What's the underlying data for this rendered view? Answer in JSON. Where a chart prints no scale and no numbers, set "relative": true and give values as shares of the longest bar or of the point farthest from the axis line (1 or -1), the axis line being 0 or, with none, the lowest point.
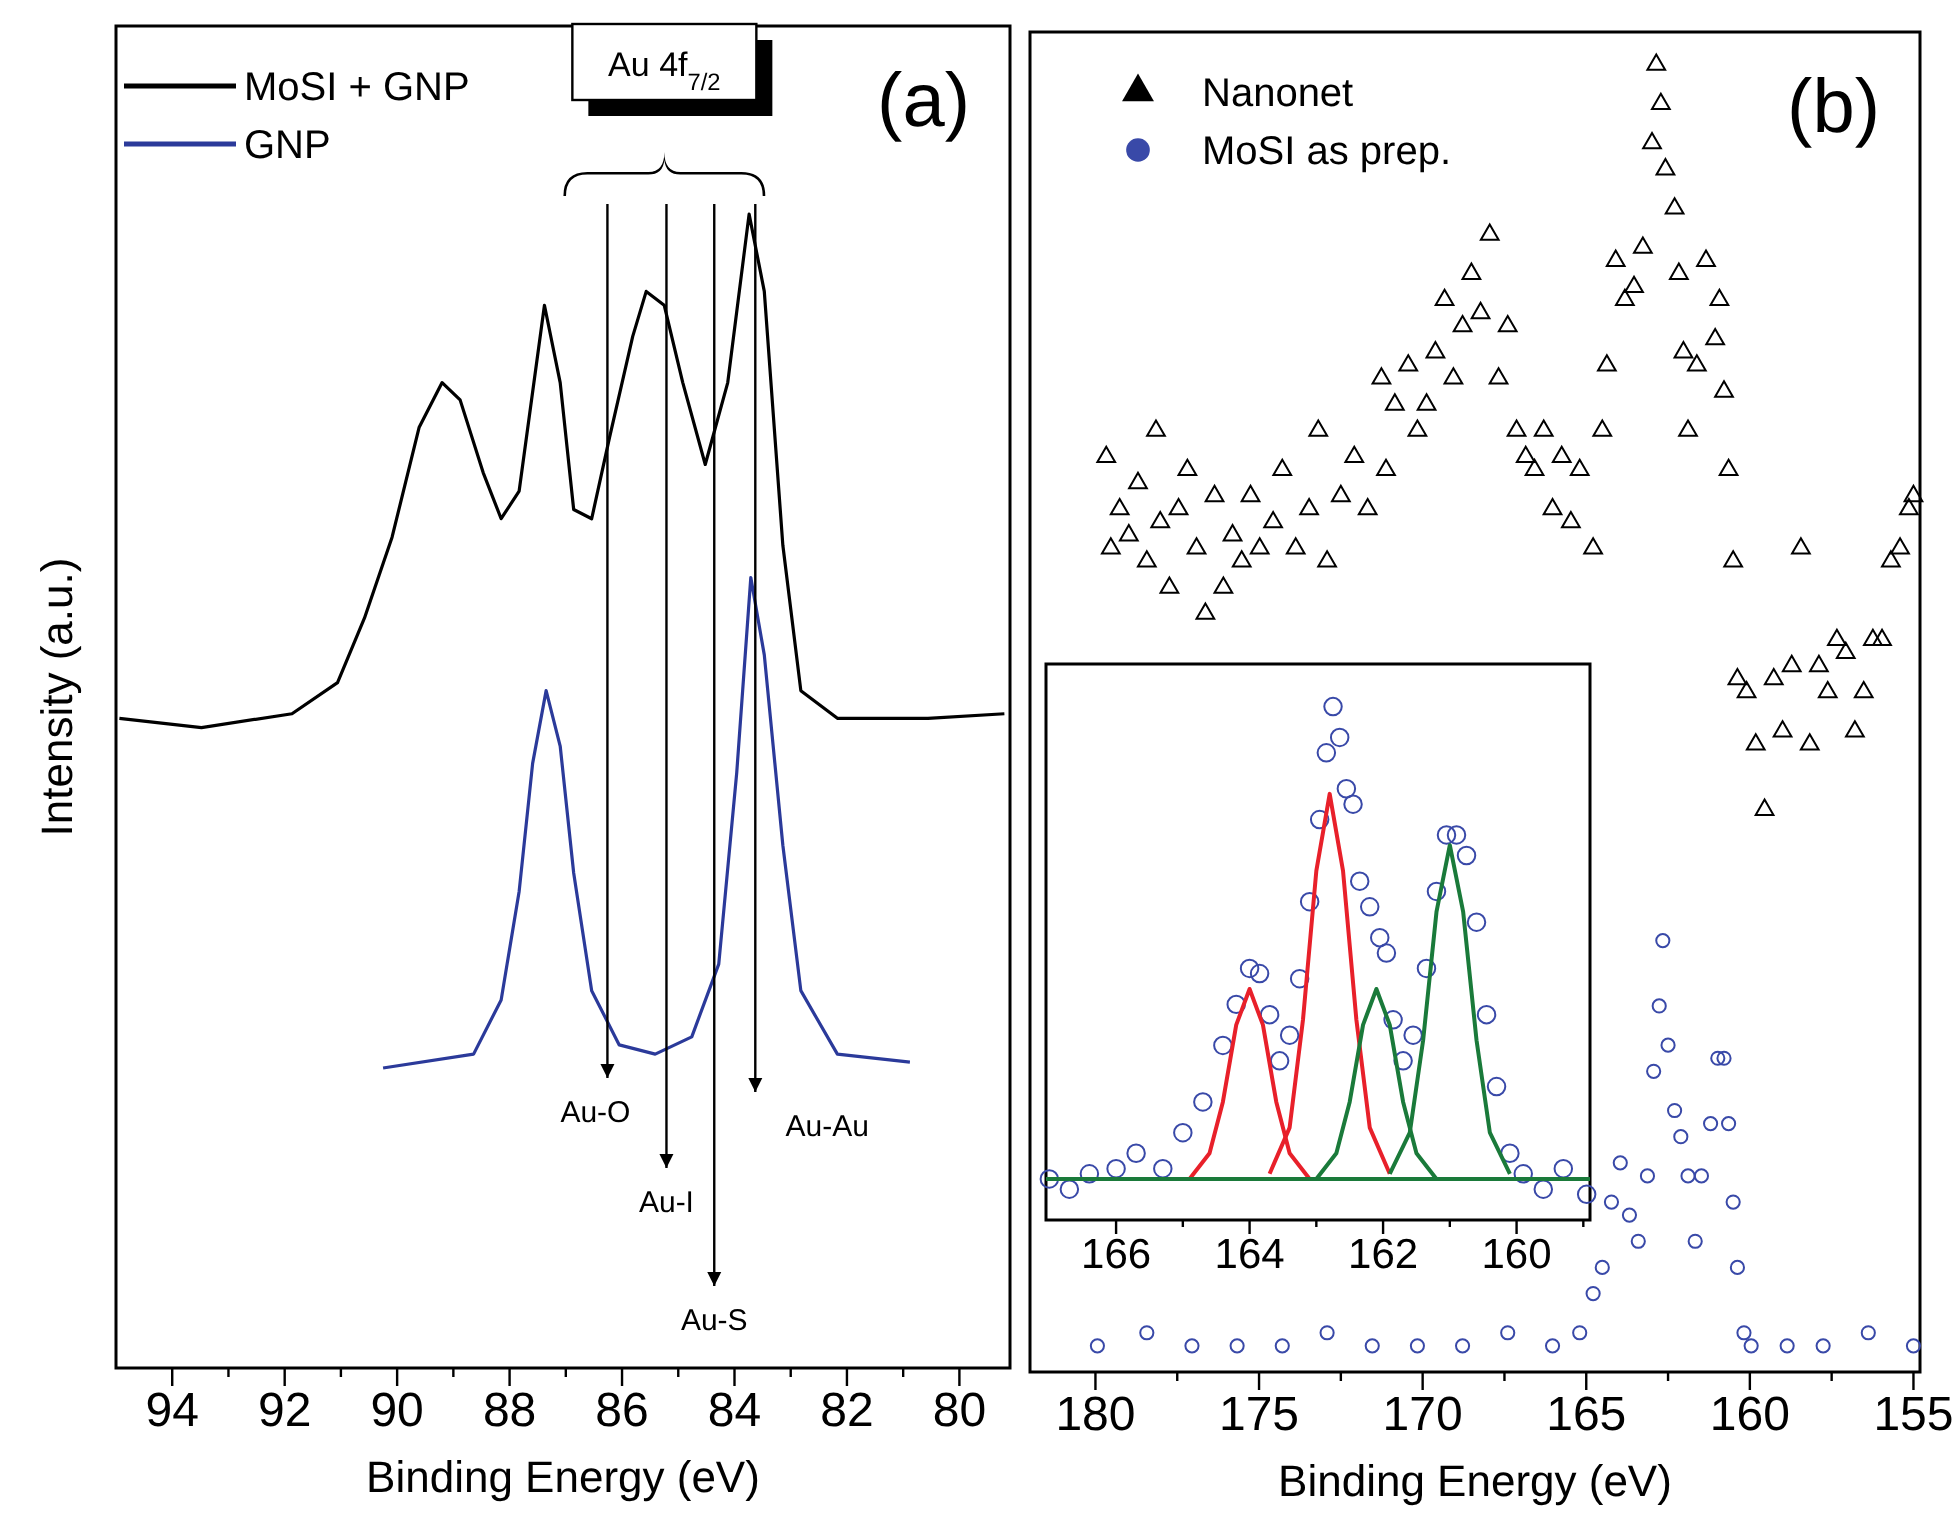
{
  "chart_data": [
    {
      "type": "line",
      "title": "(a)",
      "xlabel": "Binding Energy (eV)",
      "ylabel": "Intensity (a.u.)",
      "relative": true,
      "legend": "top left",
      "xlim": [
        95,
        79.1
      ],
      "xticks": [
        94,
        {
          "value": 93,
          "label": null
        },
        92,
        {
          "value": 91,
          "label": null
        },
        90,
        {
          "value": 89,
          "label": null
        },
        88,
        {
          "value": 87,
          "label": null
        },
        86,
        {
          "value": 85,
          "label": null
        },
        84,
        {
          "value": 83,
          "label": null
        },
        82,
        {
          "value": 81,
          "label": null
        },
        80
      ],
      "annotations": [
        "Au 4f$_{7/2}$"
      ],
      "ref_lines": [
        {
          "axis": "x",
          "value": 86.26,
          "label": "Au-O"
        },
        {
          "axis": "x",
          "value": 85.21,
          "label": "Au-I"
        },
        {
          "axis": "x",
          "value": 84.36,
          "label": "Au-S"
        },
        {
          "axis": "x",
          "value": 83.63,
          "label": "Au-Au"
        }
      ],
      "series": [
        {
          "name": "MoSI + GNP",
          "color": "#000000",
          "x": [
            94.94,
            93.48,
            91.87,
            91.06,
            90.58,
            90.09,
            89.61,
            89.2,
            88.88,
            88.47,
            88.15,
            87.83,
            87.38,
            87.1,
            86.86,
            86.54,
            86.22,
            85.81,
            85.57,
            85.25,
            84.92,
            84.52,
            84.12,
            83.74,
            83.47,
            83.14,
            82.82,
            82.17,
            80.56,
            79.2
          ],
          "values": [
            0.563,
            0.555,
            0.567,
            0.594,
            0.65,
            0.72,
            0.815,
            0.854,
            0.839,
            0.776,
            0.736,
            0.76,
            0.921,
            0.854,
            0.744,
            0.736,
            0.807,
            0.894,
            0.933,
            0.921,
            0.854,
            0.783,
            0.854,
            1,
            0.933,
            0.713,
            0.587,
            0.563,
            0.563,
            0.567
          ]
        },
        {
          "name": "GNP",
          "color": "#2b3a9a",
          "x": [
            90.25,
            88.64,
            88.15,
            87.83,
            87.59,
            87.35,
            87.1,
            86.86,
            86.54,
            86.05,
            85.41,
            84.76,
            84.28,
            83.96,
            83.71,
            83.47,
            83.14,
            82.82,
            82.17,
            80.88
          ],
          "values": [
            0.26,
            0.272,
            0.319,
            0.413,
            0.524,
            0.587,
            0.539,
            0.429,
            0.327,
            0.28,
            0.272,
            0.287,
            0.35,
            0.516,
            0.685,
            0.618,
            0.453,
            0.327,
            0.272,
            0.265
          ]
        }
      ]
    },
    {
      "type": "scatter",
      "title": "(b)",
      "xlabel": "Binding Energy (eV)",
      "relative": true,
      "legend": "top left",
      "xlim": [
        182,
        154.8
      ],
      "xticks": [
        180,
        {
          "value": 177.5,
          "label": null
        },
        175,
        {
          "value": 172.5,
          "label": null
        },
        170,
        {
          "value": 167.5,
          "label": null
        },
        165,
        {
          "value": 162.5,
          "label": null
        },
        160,
        {
          "value": 157.5,
          "label": null
        },
        155
      ],
      "series": [
        {
          "name": "Nanonet",
          "color": "#000000",
          "marker": "triangle",
          "x": [
            179.67,
            179.53,
            179.26,
            178.98,
            178.7,
            178.43,
            178.15,
            178.02,
            177.74,
            177.46,
            177.19,
            176.91,
            176.64,
            176.36,
            176.09,
            175.81,
            175.53,
            175.26,
            174.98,
            174.57,
            174.29,
            173.88,
            173.47,
            173.19,
            172.92,
            172.5,
            172.09,
            171.68,
            171.26,
            171.12,
            170.85,
            170.44,
            170.16,
            169.88,
            169.61,
            169.33,
            169.06,
            168.78,
            168.51,
            168.23,
            167.95,
            167.68,
            167.4,
            167.13,
            166.85,
            166.58,
            166.3,
            166.03,
            165.75,
            165.47,
            165.2,
            164.79,
            164.51,
            164.37,
            164.1,
            163.82,
            163.54,
            163.27,
            162.99,
            162.86,
            162.72,
            162.58,
            162.3,
            162.17,
            162.03,
            161.89,
            161.62,
            161.34,
            161.06,
            160.93,
            160.79,
            160.65,
            160.51,
            160.38,
            160.1,
            159.82,
            159.55,
            159.27,
            159,
            158.72,
            158.44,
            158.17,
            157.89,
            157.62,
            157.34,
            157.07,
            156.79,
            156.52,
            156.24,
            155.96,
            155.69,
            155.41,
            155.14,
            155
          ],
          "values": [
            0.7,
            0.63,
            0.66,
            0.64,
            0.68,
            0.62,
            0.72,
            0.65,
            0.6,
            0.66,
            0.69,
            0.63,
            0.58,
            0.67,
            0.6,
            0.64,
            0.62,
            0.67,
            0.63,
            0.65,
            0.69,
            0.63,
            0.66,
            0.72,
            0.62,
            0.67,
            0.7,
            0.66,
            0.76,
            0.69,
            0.74,
            0.77,
            0.72,
            0.74,
            0.78,
            0.82,
            0.76,
            0.8,
            0.84,
            0.81,
            0.87,
            0.76,
            0.8,
            0.72,
            0.7,
            0.69,
            0.72,
            0.66,
            0.7,
            0.65,
            0.69,
            0.63,
            0.72,
            0.77,
            0.85,
            0.82,
            0.83,
            0.86,
            0.94,
            1,
            0.97,
            0.92,
            0.89,
            0.84,
            0.78,
            0.72,
            0.77,
            0.85,
            0.79,
            0.82,
            0.75,
            0.69,
            0.62,
            0.53,
            0.52,
            0.48,
            0.43,
            0.53,
            0.49,
            0.54,
            0.63,
            0.48,
            0.54,
            0.52,
            0.56,
            0.55,
            0.49,
            0.52,
            0.56,
            0.56,
            0.62,
            0.63,
            0.66,
            0.67
          ]
        },
        {
          "name": "MoSI as prep.",
          "color": "#3949a8",
          "marker": "circle",
          "x": [
            179.94,
            178.43,
            177.05,
            175.67,
            174.29,
            172.92,
            171.54,
            170.16,
            168.78,
            167.4,
            166.03,
            165.2,
            164.79,
            164.51,
            164.23,
            163.96,
            163.68,
            163.41,
            163.13,
            162.94,
            162.77,
            162.66,
            162.5,
            162.3,
            162.11,
            161.89,
            161.67,
            161.48,
            161.2,
            160.98,
            160.79,
            160.65,
            160.51,
            160.38,
            160.18,
            159.96,
            158.86,
            157.76,
            156.38,
            155
          ],
          "values": [
            0.02,
            0.03,
            0.02,
            0.02,
            0.02,
            0.03,
            0.02,
            0.02,
            0.02,
            0.03,
            0.02,
            0.03,
            0.06,
            0.08,
            0.13,
            0.16,
            0.12,
            0.1,
            0.15,
            0.23,
            0.28,
            0.33,
            0.25,
            0.2,
            0.18,
            0.15,
            0.1,
            0.15,
            0.19,
            0.24,
            0.24,
            0.19,
            0.13,
            0.08,
            0.03,
            0.02,
            0.02,
            0.02,
            0.03,
            0.02
          ]
        }
      ]
    },
    {
      "type": "scatter",
      "relative": true,
      "xlim": [
        167.05,
        158.9
      ],
      "xticks": [
        166,
        {
          "value": 165,
          "label": null
        },
        164,
        {
          "value": 163,
          "label": null
        },
        162,
        {
          "value": 161,
          "label": null
        },
        160,
        {
          "value": 159,
          "label": null
        }
      ],
      "series": [
        {
          "color": "#3949a8",
          "marker": "circle",
          "x": [
            167,
            166.7,
            166.4,
            166,
            165.7,
            165.3,
            165,
            164.7,
            164.4,
            164.2,
            164,
            163.85,
            163.7,
            163.55,
            163.4,
            163.25,
            163.1,
            162.95,
            162.85,
            162.75,
            162.65,
            162.55,
            162.45,
            162.35,
            162.2,
            162.05,
            161.95,
            161.85,
            161.7,
            161.55,
            161.35,
            161.2,
            161.05,
            160.9,
            160.75,
            160.6,
            160.45,
            160.3,
            160.1,
            159.9,
            159.6,
            159.3,
            158.95
          ],
          "values": [
            0.08,
            0.06,
            0.09,
            0.1,
            0.13,
            0.1,
            0.17,
            0.23,
            0.34,
            0.42,
            0.49,
            0.48,
            0.4,
            0.31,
            0.36,
            0.47,
            0.62,
            0.78,
            0.91,
            1,
            0.94,
            0.84,
            0.81,
            0.66,
            0.61,
            0.55,
            0.52,
            0.39,
            0.31,
            0.36,
            0.49,
            0.64,
            0.75,
            0.75,
            0.71,
            0.58,
            0.4,
            0.26,
            0.13,
            0.09,
            0.06,
            0.1,
            0.05
          ]
        },
        {
          "type": "line",
          "color": "#e8202a",
          "x": [
            164.9,
            164.6,
            164.4,
            164.2,
            164,
            163.8,
            163.6,
            163.4,
            163.1
          ],
          "values": [
            0.08,
            0.13,
            0.23,
            0.38,
            0.45,
            0.38,
            0.23,
            0.13,
            0.08
          ]
        },
        {
          "type": "line",
          "color": "#e8202a",
          "x": [
            163.7,
            163.4,
            163.2,
            163,
            162.8,
            162.6,
            162.4,
            162.2,
            161.9
          ],
          "values": [
            0.09,
            0.18,
            0.39,
            0.68,
            0.83,
            0.68,
            0.39,
            0.18,
            0.09
          ]
        },
        {
          "type": "line",
          "color": "#1a7a3a",
          "x": [
            163,
            162.7,
            162.5,
            162.3,
            162.1,
            161.9,
            161.7,
            161.5,
            161.2
          ],
          "values": [
            0.08,
            0.13,
            0.23,
            0.38,
            0.45,
            0.38,
            0.23,
            0.13,
            0.08
          ]
        },
        {
          "type": "line",
          "color": "#1a7a3a",
          "x": [
            161.9,
            161.6,
            161.4,
            161.2,
            161,
            160.8,
            160.6,
            160.4,
            160.1
          ],
          "values": [
            0.09,
            0.17,
            0.35,
            0.6,
            0.73,
            0.6,
            0.35,
            0.17,
            0.09
          ]
        },
        {
          "type": "line",
          "color": "#1a7a3a",
          "x": [
            167.05,
            158.9
          ],
          "values": [
            0.08,
            0.08
          ]
        }
      ]
    }
  ]
}
